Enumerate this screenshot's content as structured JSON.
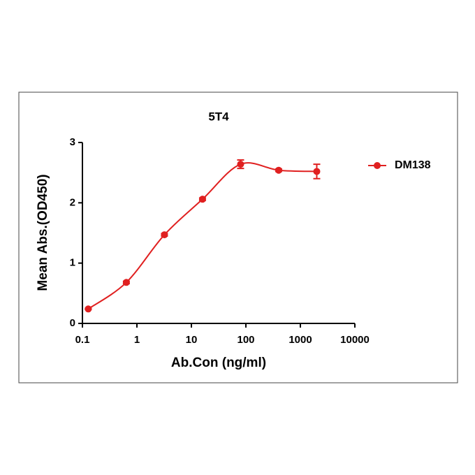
{
  "chart_data": {
    "type": "scatter",
    "title": "5T4",
    "x_label": "Ab.Con (ng/ml)",
    "y_label": "Mean Abs.(OD450)",
    "x_scale": "log",
    "x": [
      0.128,
      0.64,
      3.2,
      16,
      80,
      400,
      2000
    ],
    "series": [
      {
        "name": "DM138",
        "color": "#e02020",
        "values": [
          0.24,
          0.68,
          1.47,
          2.06,
          2.64,
          2.54,
          2.52
        ],
        "errors": [
          0.01,
          0.02,
          0.02,
          0.02,
          0.07,
          0.02,
          0.12
        ]
      }
    ],
    "xlim": [
      0.1,
      10000
    ],
    "xticks": [
      0.1,
      1,
      10,
      100,
      1000,
      10000
    ],
    "ylim": [
      0,
      3
    ],
    "yticks": [
      0,
      1,
      2,
      3
    ],
    "legend": "right"
  }
}
